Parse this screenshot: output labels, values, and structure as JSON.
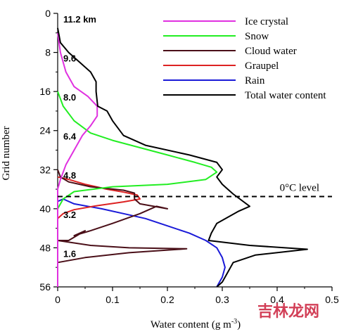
{
  "chart_data": {
    "type": "line",
    "xlabel": "Water content (g m",
    "xlabel_sup": "-3",
    "xlabel_close": ")",
    "ylabel": "Grid number",
    "xlim": [
      0,
      0.5
    ],
    "ylim": [
      0,
      56
    ],
    "y_inverted": true,
    "x_ticks": [
      0,
      0.1,
      0.2,
      0.3,
      0.4,
      0.5
    ],
    "x_tick_labels": [
      "0",
      "0.1",
      "0.2",
      "0.3",
      "0.4",
      "0.5"
    ],
    "y_ticks": [
      0,
      8,
      16,
      24,
      32,
      40,
      48,
      56
    ],
    "y_tick_labels": [
      "0",
      "8",
      "16",
      "24",
      "32",
      "40",
      "48",
      "56"
    ],
    "grid": false,
    "legend_position": "top-right",
    "altitude_labels": [
      {
        "text": "11.2 km",
        "y": 1
      },
      {
        "text": "9.6",
        "y": 9
      },
      {
        "text": "8.0",
        "y": 17
      },
      {
        "text": "6.4",
        "y": 25
      },
      {
        "text": "4.8",
        "y": 33
      },
      {
        "text": "3.2",
        "y": 41
      },
      {
        "text": "1.6",
        "y": 49
      }
    ],
    "reference_line": {
      "label": "0°C level",
      "y": 37.5
    },
    "series": [
      {
        "name": "Ice crystal",
        "color": "#e030e0",
        "points": [
          [
            0,
            4
          ],
          [
            0.005,
            8
          ],
          [
            0.015,
            12
          ],
          [
            0.03,
            15
          ],
          [
            0.055,
            17
          ],
          [
            0.072,
            19
          ],
          [
            0.072,
            21
          ],
          [
            0.06,
            23
          ],
          [
            0.045,
            25
          ],
          [
            0.03,
            28
          ],
          [
            0.015,
            31
          ],
          [
            0.005,
            34
          ],
          [
            0,
            36
          ],
          [
            0,
            56
          ]
        ]
      },
      {
        "name": "Snow",
        "color": "#22ee22",
        "points": [
          [
            0,
            16
          ],
          [
            0.01,
            19
          ],
          [
            0.03,
            22
          ],
          [
            0.06,
            24.5
          ],
          [
            0.1,
            26
          ],
          [
            0.15,
            27.5
          ],
          [
            0.2,
            29
          ],
          [
            0.25,
            30.5
          ],
          [
            0.28,
            31.5
          ],
          [
            0.29,
            32.5
          ],
          [
            0.27,
            34
          ],
          [
            0.2,
            35
          ],
          [
            0.1,
            35.5
          ],
          [
            0.03,
            36.5
          ],
          [
            0.01,
            38
          ],
          [
            0,
            40
          ],
          [
            0,
            56
          ]
        ]
      },
      {
        "name": "Cloud water",
        "color": "#4a0f18",
        "points": [
          [
            0,
            32
          ],
          [
            0.005,
            33.5
          ],
          [
            0.02,
            34.5
          ],
          [
            0.06,
            35.5
          ],
          [
            0.12,
            36.2
          ],
          [
            0.14,
            36.8
          ],
          [
            0.14,
            38
          ],
          [
            0.15,
            39
          ],
          [
            0.2,
            40
          ],
          [
            0.18,
            39.5
          ],
          [
            0.15,
            41
          ],
          [
            0.1,
            43
          ],
          [
            0.06,
            44.5
          ],
          [
            0.03,
            45.5
          ],
          [
            0.05,
            44.5
          ],
          [
            0.02,
            46.5
          ],
          [
            0,
            46.5
          ],
          [
            0.06,
            47.5
          ],
          [
            0.13,
            48
          ],
          [
            0.235,
            48.2
          ],
          [
            0.13,
            49
          ],
          [
            0.05,
            50
          ],
          [
            0,
            51
          ],
          [
            0,
            56
          ]
        ]
      },
      {
        "name": "Graupel",
        "color": "#dd2222",
        "points": [
          [
            0,
            33.5
          ],
          [
            0.02,
            34
          ],
          [
            0.05,
            35
          ],
          [
            0.09,
            36
          ],
          [
            0.12,
            36.6
          ],
          [
            0.145,
            37.2
          ],
          [
            0.15,
            38
          ],
          [
            0.12,
            38.6
          ],
          [
            0.07,
            39.4
          ],
          [
            0.03,
            40.2
          ],
          [
            0.01,
            41
          ],
          [
            0,
            42
          ],
          [
            0,
            56
          ]
        ]
      },
      {
        "name": "Rain",
        "color": "#1a1ad8",
        "points": [
          [
            0,
            38.5
          ],
          [
            0.01,
            38
          ],
          [
            0.03,
            39
          ],
          [
            0.08,
            40
          ],
          [
            0.12,
            41
          ],
          [
            0.16,
            42
          ],
          [
            0.2,
            43.5
          ],
          [
            0.24,
            45
          ],
          [
            0.27,
            46.5
          ],
          [
            0.29,
            48
          ],
          [
            0.3,
            50
          ],
          [
            0.305,
            52
          ],
          [
            0.3,
            54
          ],
          [
            0.29,
            56
          ]
        ]
      },
      {
        "name": "Total water content",
        "color": "#000000",
        "points": [
          [
            0,
            3
          ],
          [
            0.005,
            6
          ],
          [
            0.02,
            8
          ],
          [
            0.04,
            10
          ],
          [
            0.06,
            12
          ],
          [
            0.07,
            14
          ],
          [
            0.07,
            16
          ],
          [
            0.073,
            19
          ],
          [
            0.09,
            20
          ],
          [
            0.1,
            22
          ],
          [
            0.12,
            25
          ],
          [
            0.16,
            27
          ],
          [
            0.24,
            29
          ],
          [
            0.29,
            30.5
          ],
          [
            0.3,
            32
          ],
          [
            0.29,
            33.5
          ],
          [
            0.3,
            35
          ],
          [
            0.31,
            36
          ],
          [
            0.32,
            37
          ],
          [
            0.35,
            39.5
          ],
          [
            0.33,
            40.5
          ],
          [
            0.29,
            43
          ],
          [
            0.28,
            45
          ],
          [
            0.275,
            46.5
          ],
          [
            0.35,
            47.5
          ],
          [
            0.455,
            48.3
          ],
          [
            0.36,
            49.5
          ],
          [
            0.32,
            51
          ],
          [
            0.31,
            53
          ],
          [
            0.3,
            55
          ],
          [
            0.29,
            56
          ]
        ]
      }
    ]
  },
  "watermark": {
    "text": "吉林龙网"
  }
}
